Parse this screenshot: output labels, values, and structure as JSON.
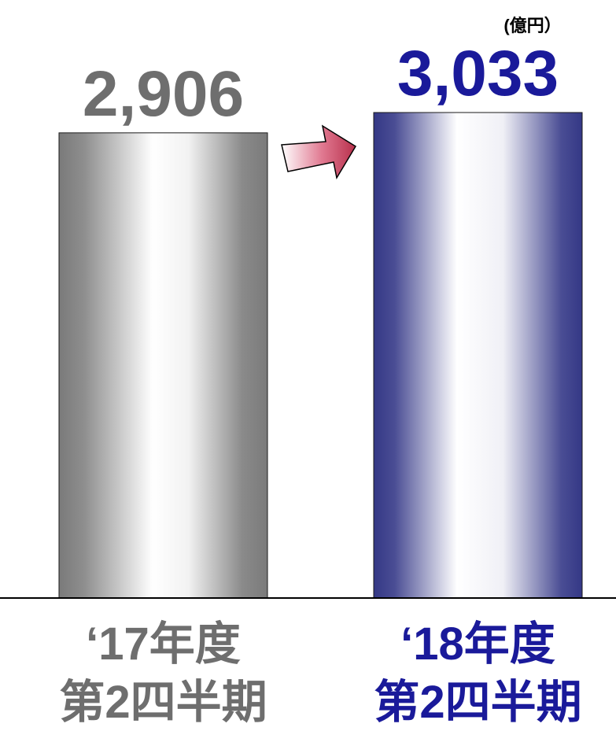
{
  "chart_data": {
    "type": "bar",
    "unit": "(億円）",
    "categories": [
      [
        "‘17年度",
        "第2四半期"
      ],
      [
        "‘18年度",
        "第2四半期"
      ]
    ],
    "values": [
      2906,
      3033
    ],
    "value_labels": [
      "2,906",
      "3,033"
    ],
    "ylim": [
      0,
      3033
    ],
    "grid": false,
    "legend": "none",
    "colors": {
      "bars": [
        "#7f7f7f",
        "#3a3d8a"
      ],
      "value_labels": [
        "#6e6e6e",
        "#1a1a9a"
      ],
      "category_labels": [
        "#6e6e6e",
        "#1a1a9a"
      ],
      "arrow": "#c0405a",
      "axis": "#000000"
    },
    "annotation": "increase-arrow"
  }
}
